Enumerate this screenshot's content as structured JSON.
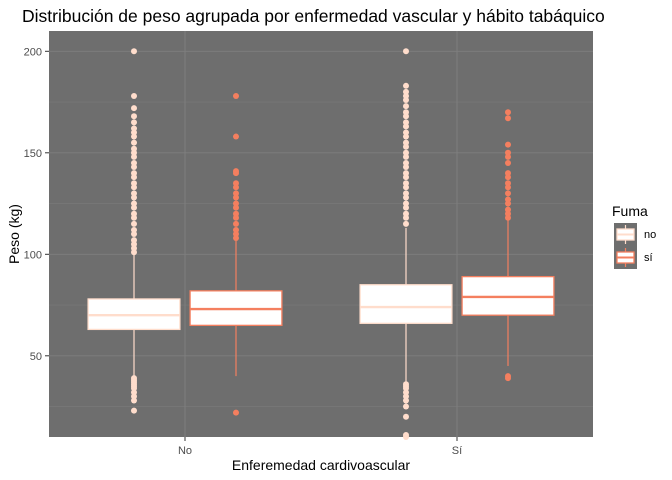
{
  "chart_data": {
    "type": "boxplot",
    "title": "Distribución de peso agrupada por enfermedad vascular y hábito tabáquico",
    "xlabel": "Enferemedad cardivoascular",
    "ylabel": "Peso (kg)",
    "categories": [
      "No",
      "Sí"
    ],
    "ylim": [
      10,
      210
    ],
    "yticks": [
      50,
      100,
      150,
      200
    ],
    "grid": true,
    "legend": {
      "title": "Fuma",
      "position": "right"
    },
    "series": [
      {
        "name": "no",
        "color": "#FFDDCC",
        "boxes": [
          {
            "category": "No",
            "lower_whisker": 40,
            "q1": 63,
            "median": 70,
            "q3": 78,
            "upper_whisker": 100,
            "outliers_high": [
              101,
              103,
              105,
              107,
              110,
              112,
              115,
              118,
              120,
              123,
              125,
              128,
              130,
              133,
              135,
              138,
              140,
              143,
              145,
              148,
              150,
              152,
              155,
              158,
              160,
              162,
              165,
              168,
              172,
              178,
              200
            ],
            "outliers_low": [
              23,
              28,
              30,
              32,
              34,
              35,
              36,
              37,
              38,
              39
            ]
          },
          {
            "category": "Sí",
            "lower_whisker": 37,
            "q1": 66,
            "median": 74,
            "q3": 85,
            "upper_whisker": 113,
            "outliers_high": [
              115,
              118,
              120,
              123,
              125,
              128,
              130,
              133,
              135,
              138,
              140,
              143,
              145,
              148,
              150,
              153,
              155,
              158,
              160,
              163,
              165,
              168,
              170,
              173,
              176,
              178,
              180,
              183,
              200
            ],
            "outliers_low": [
              10,
              11,
              20,
              25,
              28,
              30,
              32,
              34,
              35,
              36
            ]
          }
        ]
      },
      {
        "name": "sí",
        "color": "#F47F5F",
        "boxes": [
          {
            "category": "No",
            "lower_whisker": 40,
            "q1": 65,
            "median": 73,
            "q3": 82,
            "upper_whisker": 107,
            "outliers_high": [
              108,
              110,
              112,
              115,
              118,
              120,
              123,
              125,
              128,
              130,
              133,
              135,
              140,
              141,
              158,
              178
            ],
            "outliers_low": [
              22
            ]
          },
          {
            "category": "Sí",
            "lower_whisker": 45,
            "q1": 70,
            "median": 79,
            "q3": 89,
            "upper_whisker": 117,
            "outliers_high": [
              118,
              120,
              122,
              125,
              127,
              130,
              133,
              135,
              138,
              140,
              145,
              148,
              150,
              154,
              167,
              170
            ],
            "outliers_low": [
              39,
              40
            ]
          }
        ]
      }
    ]
  }
}
